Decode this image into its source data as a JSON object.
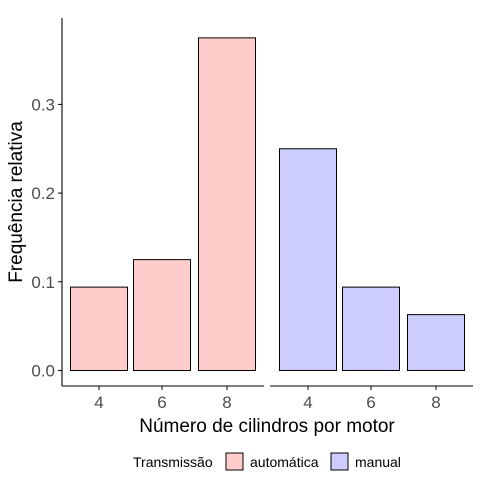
{
  "chart_data": {
    "type": "bar",
    "facets": [
      {
        "name": "automática",
        "color": "#ffcccc",
        "categories": [
          "4",
          "6",
          "8"
        ],
        "values": [
          0.094,
          0.125,
          0.375
        ]
      },
      {
        "name": "manual",
        "color": "#ccccff",
        "categories": [
          "4",
          "6",
          "8"
        ],
        "values": [
          0.25,
          0.094,
          0.063
        ]
      }
    ],
    "xlabel": "Número de cilindros por motor",
    "ylabel": "Frequência relativa",
    "yticks": [
      "0.0",
      "0.1",
      "0.2",
      "0.3"
    ],
    "ylim": [
      0,
      0.39
    ],
    "grid": false,
    "legend": {
      "title": "Transmissão",
      "position": "bottom",
      "items": [
        {
          "label": "automática",
          "color": "#ffcccc"
        },
        {
          "label": "manual",
          "color": "#ccccff"
        }
      ]
    }
  }
}
